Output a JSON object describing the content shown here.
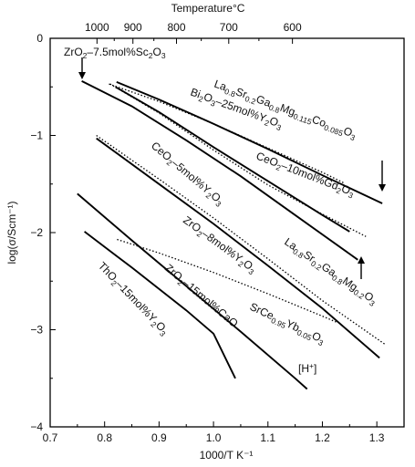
{
  "chart_data": {
    "type": "line",
    "xlabel": "1000/T K⁻¹",
    "ylabel": "log(σ/Scm⁻¹)",
    "top_axis_label": "Temperature°C",
    "xlim": [
      0.7,
      1.35
    ],
    "ylim": [
      -4,
      0
    ],
    "x_ticks": [
      "0.7",
      "0.8",
      "0.9",
      "1.0",
      "1.1",
      "1.2",
      "1.3"
    ],
    "x_tick_values": [
      0.7,
      0.8,
      0.9,
      1.0,
      1.1,
      1.2,
      1.3
    ],
    "y_ticks": [
      "0",
      "−1",
      "−2",
      "−3",
      "−4"
    ],
    "y_tick_values": [
      0,
      -1,
      -2,
      -3,
      -4
    ],
    "top_ticks": [
      {
        "label": "1000",
        "x": 0.786
      },
      {
        "label": "900",
        "x": 0.852
      },
      {
        "label": "800",
        "x": 0.932
      },
      {
        "label": "700",
        "x": 1.028
      },
      {
        "label": "600",
        "x": 1.145
      }
    ],
    "grid": false,
    "series": [
      {
        "name": "ZrO₂–7.5mol%Sc₂O₃",
        "style": "solid",
        "points": [
          [
            0.758,
            -0.44
          ],
          [
            0.85,
            -0.7
          ],
          [
            0.95,
            -1.05
          ],
          [
            1.05,
            -1.42
          ],
          [
            1.15,
            -1.82
          ],
          [
            1.25,
            -2.22
          ],
          [
            1.265,
            -2.28
          ]
        ]
      },
      {
        "name": "La0.8Sr0.2Ga0.8Mg0.115Co0.085O3",
        "style": "solid",
        "points": [
          [
            0.822,
            -0.45
          ],
          [
            0.9,
            -0.63
          ],
          [
            1.0,
            -0.88
          ],
          [
            1.1,
            -1.14
          ],
          [
            1.2,
            -1.41
          ],
          [
            1.31,
            -1.7
          ]
        ]
      },
      {
        "name": "Bi₂O₃–25mol%Y₂O₃",
        "style": "dotted",
        "points": [
          [
            0.808,
            -0.47
          ],
          [
            0.9,
            -0.65
          ],
          [
            1.0,
            -0.88
          ],
          [
            1.1,
            -1.13
          ],
          [
            1.2,
            -1.38
          ],
          [
            1.24,
            -1.49
          ]
        ]
      },
      {
        "name": "CeO₂–10mol%Gd₂O₃",
        "style": "dotted",
        "points": [
          [
            0.81,
            -0.47
          ],
          [
            0.9,
            -0.77
          ],
          [
            1.0,
            -1.15
          ],
          [
            1.1,
            -1.51
          ],
          [
            1.2,
            -1.81
          ],
          [
            1.28,
            -2.04
          ]
        ]
      },
      {
        "name": "La0.8Sr0.2Ga0.8Mg0.2O3",
        "style": "solid",
        "points": [
          [
            0.82,
            -0.5
          ],
          [
            0.9,
            -0.76
          ],
          [
            1.0,
            -1.12
          ],
          [
            1.1,
            -1.47
          ],
          [
            1.2,
            -1.82
          ],
          [
            1.25,
            -1.99
          ]
        ]
      },
      {
        "name": "CeO₂–5mol%Y₂O₃",
        "style": "dotted",
        "points": [
          [
            0.785,
            -1.0
          ],
          [
            0.9,
            -1.45
          ],
          [
            1.0,
            -1.85
          ],
          [
            1.1,
            -2.27
          ],
          [
            1.2,
            -2.7
          ],
          [
            1.315,
            -3.15
          ]
        ]
      },
      {
        "name": "ZrO₂–8mol%Y₂O₃",
        "style": "solid",
        "points": [
          [
            0.785,
            -1.03
          ],
          [
            0.9,
            -1.5
          ],
          [
            1.0,
            -1.91
          ],
          [
            1.1,
            -2.34
          ],
          [
            1.2,
            -2.78
          ],
          [
            1.305,
            -3.29
          ]
        ]
      },
      {
        "name": "SrCe0.95Yb0.05O3 [H⁺]",
        "style": "dotted",
        "points": [
          [
            0.823,
            -2.07
          ],
          [
            0.9,
            -2.21
          ],
          [
            1.0,
            -2.41
          ],
          [
            1.1,
            -2.63
          ],
          [
            1.2,
            -2.86
          ],
          [
            1.225,
            -2.92
          ]
        ]
      },
      {
        "name": "ZrO₂–15mol%CaO",
        "style": "solid",
        "points": [
          [
            0.75,
            -1.6
          ],
          [
            0.85,
            -2.08
          ],
          [
            0.95,
            -2.55
          ],
          [
            1.05,
            -3.02
          ],
          [
            1.15,
            -3.5
          ],
          [
            1.172,
            -3.61
          ]
        ]
      },
      {
        "name": "ThO₂–15mol%Y₂O₃",
        "style": "solid",
        "points": [
          [
            0.763,
            -1.99
          ],
          [
            0.85,
            -2.36
          ],
          [
            0.95,
            -2.8
          ],
          [
            1.0,
            -3.04
          ],
          [
            1.04,
            -3.5
          ]
        ]
      }
    ],
    "annotations": [
      {
        "id": "label-zro2-sc",
        "segments": [
          {
            "t": "ZrO"
          },
          {
            "t": "2",
            "sub": true
          },
          {
            "t": "–7.5mol%Sc"
          },
          {
            "t": "2",
            "sub": true
          },
          {
            "t": "O"
          },
          {
            "t": "3",
            "sub": true
          }
        ]
      },
      {
        "id": "label-lsgmc",
        "segments": [
          {
            "t": "La"
          },
          {
            "t": "0.8",
            "sub": true
          },
          {
            "t": "Sr"
          },
          {
            "t": "0.2",
            "sub": true
          },
          {
            "t": "Ga"
          },
          {
            "t": "0.8",
            "sub": true
          },
          {
            "t": "Mg"
          },
          {
            "t": "0.115",
            "sub": true
          },
          {
            "t": "Co"
          },
          {
            "t": "0.085",
            "sub": true
          },
          {
            "t": "O"
          },
          {
            "t": "3",
            "sub": true
          }
        ]
      },
      {
        "id": "label-bi2o3",
        "segments": [
          {
            "t": "Bi"
          },
          {
            "t": "2",
            "sub": true
          },
          {
            "t": "O"
          },
          {
            "t": "3",
            "sub": true
          },
          {
            "t": "–25mol%Y"
          },
          {
            "t": "2",
            "sub": true
          },
          {
            "t": "O"
          },
          {
            "t": "3",
            "sub": true
          }
        ]
      },
      {
        "id": "label-ceo2-gd",
        "segments": [
          {
            "t": "CeO"
          },
          {
            "t": "2",
            "sub": true
          },
          {
            "t": "–10mol%Gd"
          },
          {
            "t": "2",
            "sub": true
          },
          {
            "t": "O"
          },
          {
            "t": "3",
            "sub": true
          }
        ]
      },
      {
        "id": "label-ceo2-y",
        "segments": [
          {
            "t": "CeO"
          },
          {
            "t": "2",
            "sub": true
          },
          {
            "t": "–5mol%Y"
          },
          {
            "t": "2",
            "sub": true
          },
          {
            "t": "O"
          },
          {
            "t": "3",
            "sub": true
          }
        ]
      },
      {
        "id": "label-zro2-8y",
        "segments": [
          {
            "t": "ZrO"
          },
          {
            "t": "2",
            "sub": true
          },
          {
            "t": "–8mol%Y"
          },
          {
            "t": "2",
            "sub": true
          },
          {
            "t": "O"
          },
          {
            "t": "3",
            "sub": true
          }
        ]
      },
      {
        "id": "label-lsgm",
        "segments": [
          {
            "t": "La"
          },
          {
            "t": "0.8",
            "sub": true
          },
          {
            "t": "Sr"
          },
          {
            "t": "0.2",
            "sub": true
          },
          {
            "t": "Ga"
          },
          {
            "t": "0.8",
            "sub": true
          },
          {
            "t": "Mg"
          },
          {
            "t": "0.2",
            "sub": true
          },
          {
            "t": "O"
          },
          {
            "t": "3",
            "sub": true
          }
        ]
      },
      {
        "id": "label-zro2-cao",
        "segments": [
          {
            "t": "ZrO"
          },
          {
            "t": "2",
            "sub": true
          },
          {
            "t": "–15mol%CaO"
          }
        ]
      },
      {
        "id": "label-tho2",
        "segments": [
          {
            "t": "ThO"
          },
          {
            "t": "2",
            "sub": true
          },
          {
            "t": "–15mol%Y"
          },
          {
            "t": "2",
            "sub": true
          },
          {
            "t": "O"
          },
          {
            "t": "3",
            "sub": true
          }
        ]
      },
      {
        "id": "label-srce",
        "segments": [
          {
            "t": "SrCe"
          },
          {
            "t": "0.95",
            "sub": true
          },
          {
            "t": "Yb"
          },
          {
            "t": "0.05",
            "sub": true
          },
          {
            "t": "O"
          },
          {
            "t": "3",
            "sub": true
          }
        ]
      },
      {
        "id": "label-hplus",
        "segments": [
          {
            "t": "[H"
          },
          {
            "t": "+",
            "sup": true
          },
          {
            "t": "]"
          }
        ]
      }
    ]
  }
}
